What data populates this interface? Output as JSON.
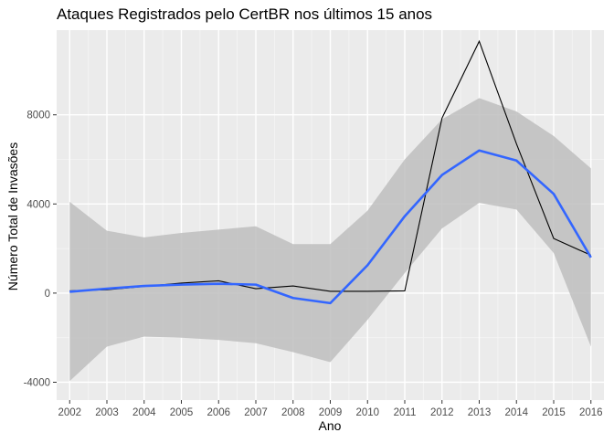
{
  "chart_data": {
    "type": "line",
    "title": "Ataques Registrados pelo CertBR nos últimos 15 anos",
    "xlabel": "Ano",
    "ylabel": "Número Total de Invasões",
    "x": [
      2002,
      2003,
      2004,
      2005,
      2006,
      2007,
      2008,
      2009,
      2010,
      2011,
      2012,
      2013,
      2014,
      2015,
      2016
    ],
    "xlim": [
      2001.65,
      2016.35
    ],
    "ylim": [
      -4800,
      11800
    ],
    "x_ticks": [
      "2002",
      "2003",
      "2004",
      "2005",
      "2006",
      "2007",
      "2008",
      "2009",
      "2010",
      "2011",
      "2012",
      "2013",
      "2014",
      "2015",
      "2016"
    ],
    "y_ticks": [
      -4000,
      0,
      4000,
      8000
    ],
    "y_tick_labels": [
      "-4000",
      "0",
      "4000",
      "8000"
    ],
    "grid": true,
    "legend": "none",
    "colors": {
      "panel": "#ebebeb",
      "grid_major": "#ffffff",
      "observed": "#000000",
      "smooth": "#3366ff",
      "ribbon": "#bebebe"
    },
    "series": [
      {
        "kind": "observed",
        "values": [
          100,
          150,
          300,
          450,
          550,
          200,
          320,
          80,
          80,
          100,
          7850,
          11300,
          6700,
          2450,
          1700
        ]
      },
      {
        "kind": "smooth",
        "values": [
          60,
          200,
          320,
          380,
          420,
          380,
          -220,
          -450,
          1250,
          3450,
          5300,
          6400,
          5950,
          4450,
          1600
        ],
        "lower": [
          -3950,
          -2400,
          -1950,
          -2000,
          -2100,
          -2250,
          -2650,
          -3100,
          -1200,
          900,
          2900,
          4050,
          3750,
          1800,
          -2400
        ],
        "upper": [
          4100,
          2800,
          2500,
          2700,
          2850,
          3000,
          2200,
          2200,
          3700,
          6000,
          7800,
          8750,
          8150,
          7050,
          5600
        ]
      }
    ]
  }
}
